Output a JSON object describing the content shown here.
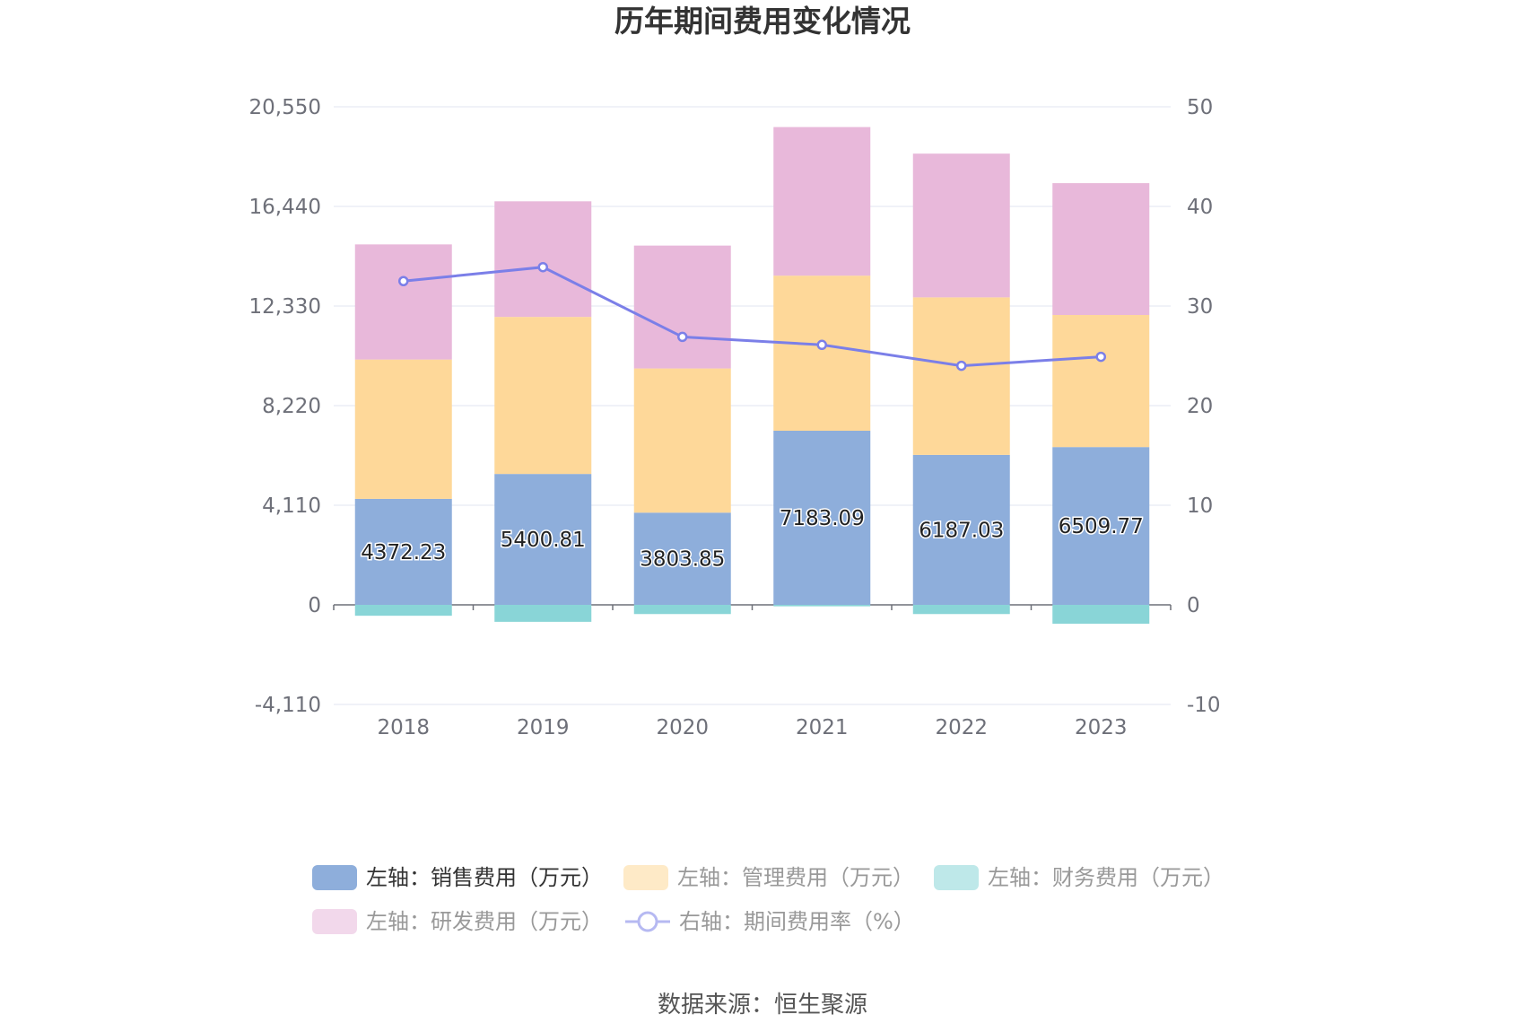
{
  "chart_data": {
    "type": "bar",
    "title": "历年期间费用变化情况",
    "categories": [
      "2018",
      "2019",
      "2020",
      "2021",
      "2022",
      "2023"
    ],
    "left_axis": {
      "min": -4110,
      "max": 20550,
      "ticks": [
        -4110,
        0,
        4110,
        8220,
        12330,
        16440,
        20550
      ],
      "tick_labels": [
        "-4,110",
        "0",
        "4,110",
        "8,220",
        "12,330",
        "16,440",
        "20,550"
      ]
    },
    "right_axis": {
      "min": -10,
      "max": 50,
      "ticks": [
        -10,
        0,
        10,
        20,
        30,
        40,
        50
      ],
      "tick_labels": [
        "-10",
        "0",
        "10",
        "20",
        "30",
        "40",
        "50"
      ]
    },
    "series": [
      {
        "name": "左轴：销售费用（万元）",
        "type": "bar",
        "axis": "left",
        "color": "#8eaedb",
        "values": [
          4372.23,
          5400.81,
          3803.85,
          7183.09,
          6187.03,
          6509.77
        ],
        "show_labels": true,
        "labels": [
          "4372.23",
          "5400.81",
          "3803.85",
          "7183.09",
          "6187.03",
          "6509.77"
        ]
      },
      {
        "name": "左轴：管理费用（万元）",
        "type": "bar",
        "axis": "left",
        "color": "#fed899",
        "values": [
          5750,
          6480,
          5950,
          6400,
          6500,
          5450
        ]
      },
      {
        "name": "左轴：财务费用（万元）",
        "type": "bar",
        "axis": "left",
        "color": "#89d5d7",
        "values": [
          -450,
          -700,
          -380,
          -60,
          -380,
          -780
        ]
      },
      {
        "name": "左轴：研发费用（万元）",
        "type": "bar",
        "axis": "left",
        "color": "#e8b8da",
        "values": [
          4750,
          4770,
          5070,
          6130,
          5930,
          5440
        ]
      },
      {
        "name": "右轴：期间费用率（%）",
        "type": "line",
        "axis": "right",
        "color": "#7b7fe8",
        "values": [
          32.5,
          33.9,
          26.9,
          26.1,
          24.0,
          24.9
        ]
      }
    ],
    "legend": {
      "position": "bottom",
      "inactive_color": "#999999",
      "active_color": "#333333"
    }
  },
  "source": "数据来源：恒生聚源"
}
